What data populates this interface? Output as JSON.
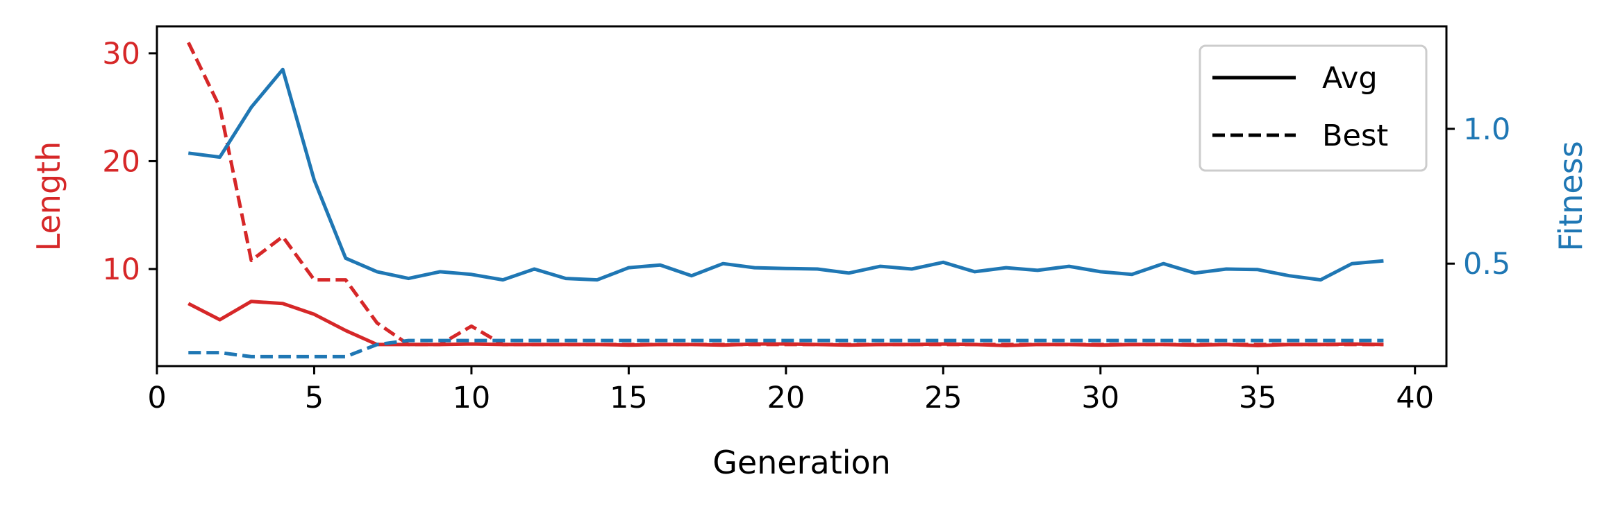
{
  "colors": {
    "length": "#d62728",
    "fitness": "#1f77b4",
    "axis": "#000000"
  },
  "chart_data": {
    "type": "line",
    "xlabel": "Generation",
    "ylabel_left": "Length",
    "ylabel_right": "Fitness",
    "xlim": [
      0,
      41
    ],
    "ylim_left": [
      1.0,
      32.5
    ],
    "ylim_right": [
      0.12,
      1.38
    ],
    "xticks": [
      0,
      5,
      10,
      15,
      20,
      25,
      30,
      35,
      40
    ],
    "yticks_left": [
      10,
      20,
      30
    ],
    "yticks_right": [
      0.5,
      1.0
    ],
    "ytick_labels_right": [
      "0.5",
      "1.0"
    ],
    "grid": false,
    "legend": {
      "placement": "top-right",
      "entries": [
        {
          "label": "Avg",
          "style": "solid"
        },
        {
          "label": "Best",
          "style": "dashed"
        }
      ]
    },
    "x": [
      1,
      2,
      3,
      4,
      5,
      6,
      7,
      8,
      9,
      10,
      11,
      12,
      13,
      14,
      15,
      16,
      17,
      18,
      19,
      20,
      21,
      22,
      23,
      24,
      25,
      26,
      27,
      28,
      29,
      30,
      31,
      32,
      33,
      34,
      35,
      36,
      37,
      38,
      39
    ],
    "series": [
      {
        "axis": "left",
        "color": "length",
        "style": "solid",
        "values": [
          6.8,
          5.3,
          7.0,
          6.8,
          5.8,
          4.3,
          3.0,
          3.0,
          3.0,
          3.05,
          3.0,
          3.0,
          3.0,
          3.0,
          2.95,
          3.0,
          3.0,
          2.95,
          3.05,
          3.05,
          3.0,
          2.95,
          3.0,
          3.0,
          3.05,
          3.0,
          2.9,
          3.0,
          3.0,
          2.95,
          3.0,
          3.0,
          2.95,
          3.0,
          2.9,
          3.0,
          3.0,
          3.05,
          3.0
        ]
      },
      {
        "axis": "left",
        "color": "length",
        "style": "dashed",
        "values": [
          31,
          25,
          10.8,
          13.0,
          9.0,
          9.0,
          5.0,
          3.0,
          3.0,
          4.7,
          3.0,
          3.0,
          3.0,
          3.0,
          3.0,
          3.0,
          3.0,
          3.0,
          3.0,
          3.0,
          3.0,
          3.0,
          3.0,
          3.0,
          3.0,
          3.0,
          3.0,
          3.0,
          3.0,
          3.0,
          3.0,
          3.0,
          3.0,
          3.0,
          3.0,
          3.0,
          3.0,
          3.0,
          3.0
        ]
      },
      {
        "axis": "right",
        "color": "fitness",
        "style": "solid",
        "values": [
          0.91,
          0.895,
          1.08,
          1.22,
          0.81,
          0.52,
          0.47,
          0.445,
          0.47,
          0.46,
          0.44,
          0.48,
          0.445,
          0.44,
          0.485,
          0.495,
          0.455,
          0.5,
          0.485,
          0.482,
          0.48,
          0.465,
          0.49,
          0.48,
          0.505,
          0.47,
          0.485,
          0.475,
          0.49,
          0.47,
          0.46,
          0.5,
          0.465,
          0.48,
          0.478,
          0.455,
          0.44,
          0.5,
          0.51
        ]
      },
      {
        "axis": "right",
        "color": "fitness",
        "style": "dashed",
        "values": [
          0.17,
          0.17,
          0.155,
          0.155,
          0.155,
          0.155,
          0.2,
          0.215,
          0.215,
          0.215,
          0.215,
          0.215,
          0.215,
          0.215,
          0.215,
          0.215,
          0.215,
          0.215,
          0.215,
          0.215,
          0.215,
          0.215,
          0.215,
          0.215,
          0.215,
          0.215,
          0.215,
          0.215,
          0.215,
          0.215,
          0.215,
          0.215,
          0.215,
          0.215,
          0.215,
          0.215,
          0.215,
          0.215,
          0.215
        ]
      }
    ]
  }
}
